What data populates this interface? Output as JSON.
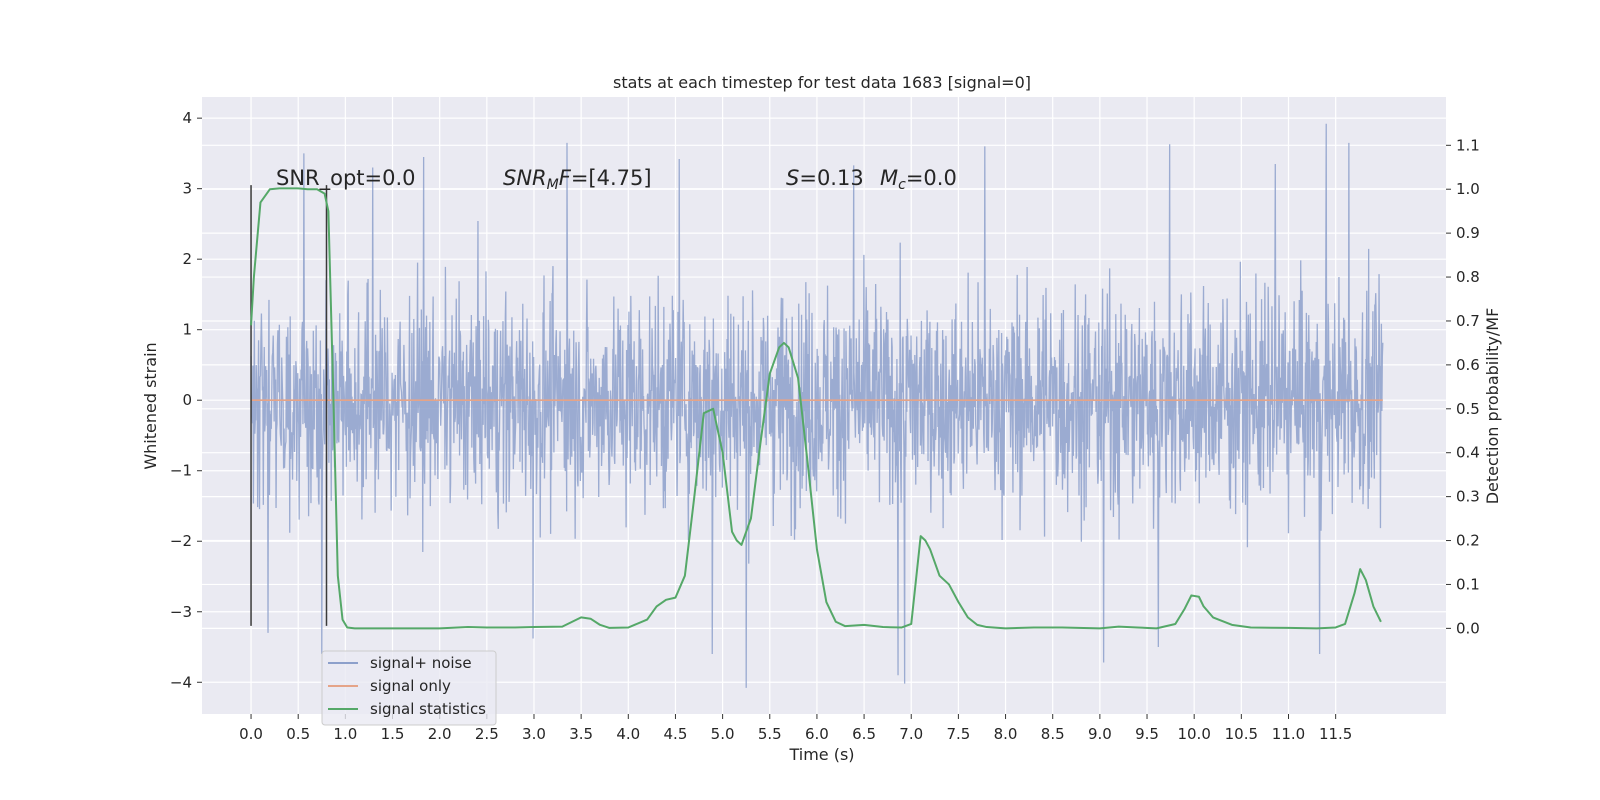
{
  "chart_data": {
    "type": "line",
    "title": "stats at each timestep for test data 1683 [signal=0]",
    "xlabel": "Time (s)",
    "ylabel_left": "Whitened strain",
    "ylabel_right": "Detection probability/MF",
    "xlim": [
      -0.52,
      12.67
    ],
    "ylim_left": [
      -4.45,
      4.3
    ],
    "ylim_right": [
      -0.195,
      1.21
    ],
    "x_ticks": [
      "0.0",
      "0.5",
      "1.0",
      "1.5",
      "2.0",
      "2.5",
      "3.0",
      "3.5",
      "4.0",
      "4.5",
      "5.0",
      "5.5",
      "6.0",
      "6.5",
      "7.0",
      "7.5",
      "8.0",
      "8.5",
      "9.0",
      "9.5",
      "10.0",
      "10.5",
      "11.0",
      "11.5"
    ],
    "y_ticks_left": [
      "4",
      "3",
      "2",
      "1",
      "0",
      "−1",
      "−2",
      "−3",
      "−4"
    ],
    "y_ticks_right": [
      "1.1",
      "1.0",
      "0.9",
      "0.8",
      "0.7",
      "0.6",
      "0.5",
      "0.4",
      "0.3",
      "0.2",
      "0.1",
      "0.0"
    ],
    "grid": true,
    "legend_placement": "lower-left",
    "annotations": {
      "snr_opt": "SNR_opt=0.0",
      "snr_mf_sym": "SNR",
      "snr_mf_sub": "M",
      "snr_mf_f": "F",
      "snr_mf_val": "=[4.75]",
      "s_sym": "S",
      "s_val": "=0.13",
      "mc_sym": "M",
      "mc_sub": "c",
      "mc_val": "=0.0"
    },
    "window_markers": {
      "x": [
        0.0,
        0.8
      ],
      "y_range": [
        -3.2,
        3.05
      ]
    },
    "series": [
      {
        "name": "signal+ noise",
        "axis": "left",
        "color": "#8da0cb",
        "kind": "noise",
        "x_range": [
          0.0,
          12.0
        ],
        "typical_envelope": [
          -2.2,
          2.2
        ],
        "peaks": [
          {
            "x": 0.56,
            "y": 3.5
          },
          {
            "x": 1.29,
            "y": 3.3
          },
          {
            "x": 1.83,
            "y": 3.45
          },
          {
            "x": 3.35,
            "y": 3.65
          },
          {
            "x": 4.54,
            "y": 3.42
          },
          {
            "x": 6.39,
            "y": 3.33
          },
          {
            "x": 7.78,
            "y": 3.6
          },
          {
            "x": 9.74,
            "y": 3.63
          },
          {
            "x": 10.86,
            "y": 3.35
          },
          {
            "x": 11.4,
            "y": 3.92
          },
          {
            "x": 11.64,
            "y": 3.65
          },
          {
            "x": 0.18,
            "y": -3.3
          },
          {
            "x": 0.75,
            "y": -3.6
          },
          {
            "x": 2.99,
            "y": -3.38
          },
          {
            "x": 4.89,
            "y": -3.6
          },
          {
            "x": 5.25,
            "y": -4.08
          },
          {
            "x": 6.86,
            "y": -3.9
          },
          {
            "x": 6.93,
            "y": -4.02
          },
          {
            "x": 9.04,
            "y": -3.72
          },
          {
            "x": 9.62,
            "y": -3.5
          },
          {
            "x": 11.33,
            "y": -3.6
          }
        ]
      },
      {
        "name": "signal only",
        "axis": "left",
        "color": "#e5a488",
        "x": [
          0.0,
          12.0
        ],
        "y": [
          0.0,
          0.0
        ]
      },
      {
        "name": "signal statistics",
        "axis": "right",
        "color": "#55a868",
        "x": [
          0.0,
          0.03,
          0.1,
          0.2,
          0.3,
          0.4,
          0.5,
          0.6,
          0.7,
          0.78,
          0.82,
          0.87,
          0.92,
          0.97,
          1.02,
          1.1,
          1.3,
          1.6,
          2.0,
          2.3,
          2.5,
          2.8,
          3.0,
          3.3,
          3.5,
          3.6,
          3.7,
          3.8,
          4.0,
          4.2,
          4.3,
          4.4,
          4.5,
          4.6,
          4.7,
          4.8,
          4.9,
          5.0,
          5.1,
          5.15,
          5.2,
          5.3,
          5.4,
          5.5,
          5.6,
          5.65,
          5.7,
          5.8,
          5.9,
          6.0,
          6.1,
          6.2,
          6.3,
          6.5,
          6.7,
          6.9,
          7.0,
          7.05,
          7.1,
          7.15,
          7.2,
          7.3,
          7.4,
          7.5,
          7.6,
          7.7,
          7.8,
          8.0,
          8.3,
          8.6,
          9.0,
          9.2,
          9.4,
          9.6,
          9.8,
          9.9,
          9.97,
          10.05,
          10.1,
          10.2,
          10.4,
          10.6,
          11.0,
          11.3,
          11.5,
          11.6,
          11.7,
          11.76,
          11.82,
          11.9,
          11.98
        ],
        "y": [
          0.69,
          0.8,
          0.97,
          1.0,
          1.002,
          1.002,
          1.002,
          1.0,
          1.0,
          0.99,
          0.95,
          0.55,
          0.12,
          0.02,
          0.002,
          0.0,
          0.0,
          0.0,
          0.0,
          0.003,
          0.002,
          0.002,
          0.003,
          0.004,
          0.025,
          0.022,
          0.008,
          0.001,
          0.002,
          0.02,
          0.05,
          0.065,
          0.07,
          0.12,
          0.3,
          0.49,
          0.5,
          0.4,
          0.22,
          0.2,
          0.19,
          0.25,
          0.42,
          0.58,
          0.64,
          0.65,
          0.64,
          0.57,
          0.38,
          0.18,
          0.06,
          0.015,
          0.005,
          0.008,
          0.003,
          0.002,
          0.01,
          0.11,
          0.21,
          0.2,
          0.18,
          0.12,
          0.1,
          0.06,
          0.025,
          0.008,
          0.003,
          0.0,
          0.002,
          0.002,
          0.0,
          0.004,
          0.002,
          0.0,
          0.01,
          0.045,
          0.075,
          0.072,
          0.05,
          0.025,
          0.008,
          0.002,
          0.001,
          0.0,
          0.002,
          0.01,
          0.08,
          0.135,
          0.11,
          0.05,
          0.015
        ]
      }
    ]
  }
}
